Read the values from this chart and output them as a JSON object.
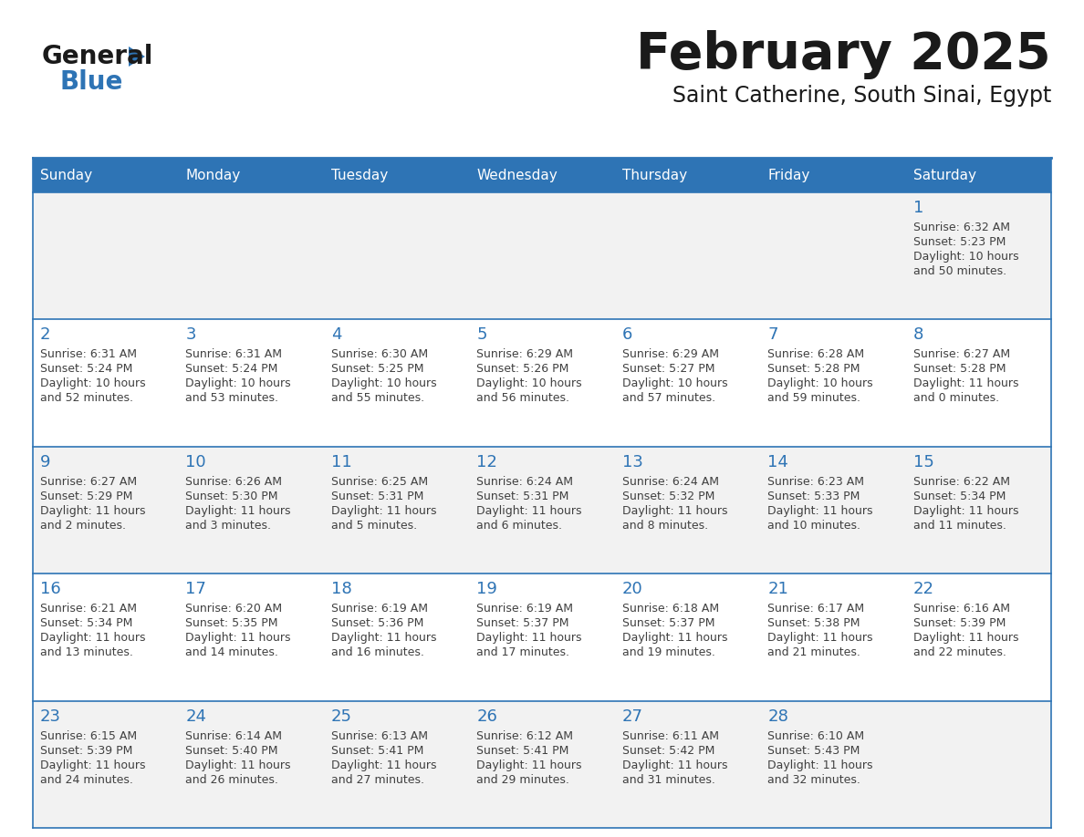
{
  "title": "February 2025",
  "subtitle": "Saint Catherine, South Sinai, Egypt",
  "days_of_week": [
    "Sunday",
    "Monday",
    "Tuesday",
    "Wednesday",
    "Thursday",
    "Friday",
    "Saturday"
  ],
  "header_bg": "#2e74b5",
  "header_text": "#ffffff",
  "cell_bg_odd": "#f2f2f2",
  "cell_bg_even": "#ffffff",
  "border_color": "#2e74b5",
  "title_color": "#1a1a1a",
  "day_num_color": "#2e74b5",
  "cell_text_color": "#404040",
  "logo_general_color": "#1a1a1a",
  "logo_blue_color": "#2e74b5",
  "calendar_data": [
    [
      null,
      null,
      null,
      null,
      null,
      null,
      {
        "day": 1,
        "sunrise": "6:32 AM",
        "sunset": "5:23 PM",
        "daylight": "10 hours",
        "daylight2": "and 50 minutes."
      }
    ],
    [
      {
        "day": 2,
        "sunrise": "6:31 AM",
        "sunset": "5:24 PM",
        "daylight": "10 hours",
        "daylight2": "and 52 minutes."
      },
      {
        "day": 3,
        "sunrise": "6:31 AM",
        "sunset": "5:24 PM",
        "daylight": "10 hours",
        "daylight2": "and 53 minutes."
      },
      {
        "day": 4,
        "sunrise": "6:30 AM",
        "sunset": "5:25 PM",
        "daylight": "10 hours",
        "daylight2": "and 55 minutes."
      },
      {
        "day": 5,
        "sunrise": "6:29 AM",
        "sunset": "5:26 PM",
        "daylight": "10 hours",
        "daylight2": "and 56 minutes."
      },
      {
        "day": 6,
        "sunrise": "6:29 AM",
        "sunset": "5:27 PM",
        "daylight": "10 hours",
        "daylight2": "and 57 minutes."
      },
      {
        "day": 7,
        "sunrise": "6:28 AM",
        "sunset": "5:28 PM",
        "daylight": "10 hours",
        "daylight2": "and 59 minutes."
      },
      {
        "day": 8,
        "sunrise": "6:27 AM",
        "sunset": "5:28 PM",
        "daylight": "11 hours",
        "daylight2": "and 0 minutes."
      }
    ],
    [
      {
        "day": 9,
        "sunrise": "6:27 AM",
        "sunset": "5:29 PM",
        "daylight": "11 hours",
        "daylight2": "and 2 minutes."
      },
      {
        "day": 10,
        "sunrise": "6:26 AM",
        "sunset": "5:30 PM",
        "daylight": "11 hours",
        "daylight2": "and 3 minutes."
      },
      {
        "day": 11,
        "sunrise": "6:25 AM",
        "sunset": "5:31 PM",
        "daylight": "11 hours",
        "daylight2": "and 5 minutes."
      },
      {
        "day": 12,
        "sunrise": "6:24 AM",
        "sunset": "5:31 PM",
        "daylight": "11 hours",
        "daylight2": "and 6 minutes."
      },
      {
        "day": 13,
        "sunrise": "6:24 AM",
        "sunset": "5:32 PM",
        "daylight": "11 hours",
        "daylight2": "and 8 minutes."
      },
      {
        "day": 14,
        "sunrise": "6:23 AM",
        "sunset": "5:33 PM",
        "daylight": "11 hours",
        "daylight2": "and 10 minutes."
      },
      {
        "day": 15,
        "sunrise": "6:22 AM",
        "sunset": "5:34 PM",
        "daylight": "11 hours",
        "daylight2": "and 11 minutes."
      }
    ],
    [
      {
        "day": 16,
        "sunrise": "6:21 AM",
        "sunset": "5:34 PM",
        "daylight": "11 hours",
        "daylight2": "and 13 minutes."
      },
      {
        "day": 17,
        "sunrise": "6:20 AM",
        "sunset": "5:35 PM",
        "daylight": "11 hours",
        "daylight2": "and 14 minutes."
      },
      {
        "day": 18,
        "sunrise": "6:19 AM",
        "sunset": "5:36 PM",
        "daylight": "11 hours",
        "daylight2": "and 16 minutes."
      },
      {
        "day": 19,
        "sunrise": "6:19 AM",
        "sunset": "5:37 PM",
        "daylight": "11 hours",
        "daylight2": "and 17 minutes."
      },
      {
        "day": 20,
        "sunrise": "6:18 AM",
        "sunset": "5:37 PM",
        "daylight": "11 hours",
        "daylight2": "and 19 minutes."
      },
      {
        "day": 21,
        "sunrise": "6:17 AM",
        "sunset": "5:38 PM",
        "daylight": "11 hours",
        "daylight2": "and 21 minutes."
      },
      {
        "day": 22,
        "sunrise": "6:16 AM",
        "sunset": "5:39 PM",
        "daylight": "11 hours",
        "daylight2": "and 22 minutes."
      }
    ],
    [
      {
        "day": 23,
        "sunrise": "6:15 AM",
        "sunset": "5:39 PM",
        "daylight": "11 hours",
        "daylight2": "and 24 minutes."
      },
      {
        "day": 24,
        "sunrise": "6:14 AM",
        "sunset": "5:40 PM",
        "daylight": "11 hours",
        "daylight2": "and 26 minutes."
      },
      {
        "day": 25,
        "sunrise": "6:13 AM",
        "sunset": "5:41 PM",
        "daylight": "11 hours",
        "daylight2": "and 27 minutes."
      },
      {
        "day": 26,
        "sunrise": "6:12 AM",
        "sunset": "5:41 PM",
        "daylight": "11 hours",
        "daylight2": "and 29 minutes."
      },
      {
        "day": 27,
        "sunrise": "6:11 AM",
        "sunset": "5:42 PM",
        "daylight": "11 hours",
        "daylight2": "and 31 minutes."
      },
      {
        "day": 28,
        "sunrise": "6:10 AM",
        "sunset": "5:43 PM",
        "daylight": "11 hours",
        "daylight2": "and 32 minutes."
      },
      null
    ]
  ]
}
